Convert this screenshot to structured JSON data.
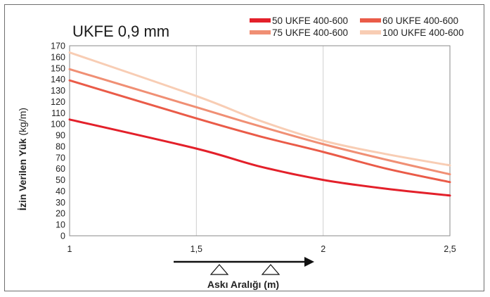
{
  "chart_data": {
    "type": "line",
    "title": "UKFE 0,9 mm",
    "ylabel_bold": "İzin Verilen Yük",
    "ylabel_unit": "(kg/m)",
    "xlabel": "Askı Aralığı (m)",
    "xlim": [
      1,
      2.5
    ],
    "ylim": [
      0,
      170
    ],
    "x_ticks": [
      1,
      1.5,
      2,
      2.5
    ],
    "x_tick_labels": [
      "1",
      "1,5",
      "2",
      "2,5"
    ],
    "y_ticks": [
      0,
      10,
      20,
      30,
      40,
      50,
      60,
      70,
      80,
      90,
      100,
      110,
      120,
      130,
      140,
      150,
      160,
      170
    ],
    "y_tick_labels": [
      "0",
      "10",
      "20",
      "30",
      "40",
      "50",
      "60",
      "70",
      "80",
      "90",
      "100",
      "110",
      "120",
      "130",
      "140",
      "150",
      "160",
      "170"
    ],
    "grid": "vertical",
    "legend_position": "top-right",
    "series": [
      {
        "name": "50 UKFE 400-600",
        "color": "#e3202a",
        "x": [
          1,
          1.5,
          1.75,
          2,
          2.25,
          2.5
        ],
        "values": [
          104,
          78,
          62,
          50,
          42,
          36
        ]
      },
      {
        "name": "60 UKFE 400-600",
        "color": "#ea5b48",
        "x": [
          1,
          1.5,
          1.75,
          2,
          2.25,
          2.5
        ],
        "values": [
          139,
          105,
          89,
          75,
          60,
          48
        ]
      },
      {
        "name": "75 UKFE 400-600",
        "color": "#f08f74",
        "x": [
          1,
          1.5,
          1.75,
          2,
          2.25,
          2.5
        ],
        "values": [
          149,
          115,
          98,
          82,
          68,
          55
        ]
      },
      {
        "name": "100 UKFE 400-600",
        "color": "#f8cdb4",
        "x": [
          1,
          1.5,
          1.75,
          2,
          2.25,
          2.5
        ],
        "values": [
          164,
          125,
          103,
          85,
          73,
          63
        ]
      }
    ]
  }
}
